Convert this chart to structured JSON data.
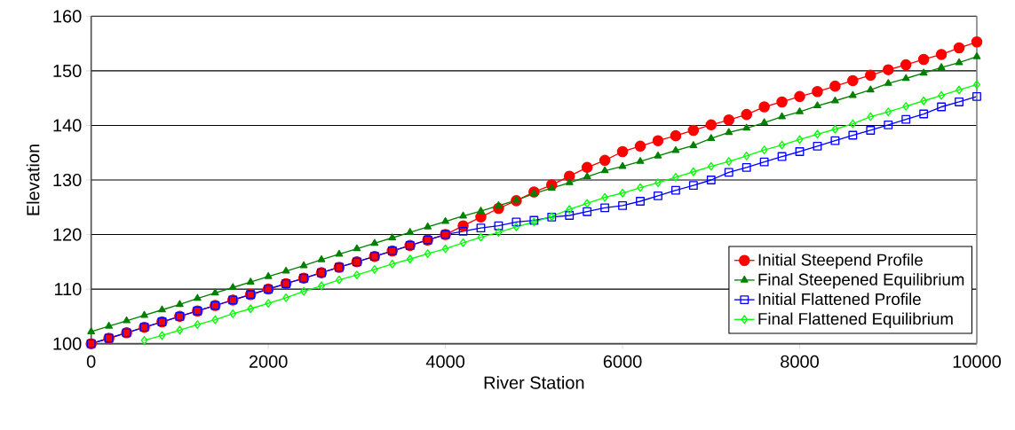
{
  "chart_data": {
    "type": "line",
    "xlabel": "River Station",
    "ylabel": "Elevation",
    "x": [
      0,
      200,
      400,
      600,
      800,
      1000,
      1200,
      1400,
      1600,
      1800,
      2000,
      2200,
      2400,
      2600,
      2800,
      3000,
      3200,
      3400,
      3600,
      3800,
      4000,
      4200,
      4400,
      4600,
      4800,
      5000,
      5200,
      5400,
      5600,
      5800,
      6000,
      6200,
      6400,
      6600,
      6800,
      7000,
      7200,
      7400,
      7600,
      7800,
      8000,
      8200,
      8400,
      8600,
      8800,
      9000,
      9200,
      9400,
      9600,
      9800,
      10000
    ],
    "series": [
      {
        "name": "Initial Steepend Profile",
        "color": "#ff0000",
        "marker": "circle",
        "values": [
          100,
          101,
          102,
          103,
          104,
          105,
          106,
          107,
          108,
          109,
          110,
          111,
          112,
          113,
          114,
          115,
          116,
          117,
          118,
          119,
          120,
          121.6,
          123.2,
          124.8,
          126.2,
          127.8,
          129.1,
          130.7,
          132.3,
          133.6,
          135.2,
          136.2,
          137.2,
          138.1,
          139.1,
          140.1,
          141.0,
          142.0,
          143.4,
          144.3,
          145.3,
          146.2,
          147.2,
          148.2,
          149.2,
          150.2,
          151.1,
          152.1,
          153.0,
          154.2,
          155.3
        ]
      },
      {
        "name": "Final Steepened Equilibrium",
        "color": "#008000",
        "marker": "triangle",
        "values": [
          102.2,
          103.2,
          104.2,
          105.2,
          106.2,
          107.2,
          108.3,
          109.3,
          110.3,
          111.3,
          112.3,
          113.3,
          114.3,
          115.4,
          116.4,
          117.4,
          118.4,
          119.4,
          120.4,
          121.4,
          122.4,
          123.4,
          124.3,
          125.3,
          126.3,
          127.5,
          128.5,
          129.5,
          130.6,
          131.7,
          132.5,
          133.4,
          134.4,
          135.4,
          136.3,
          137.6,
          138.7,
          139.5,
          140.5,
          141.6,
          142.5,
          143.6,
          144.5,
          145.5,
          146.5,
          147.7,
          148.6,
          149.6,
          150.6,
          151.5,
          152.6
        ]
      },
      {
        "name": "Initial Flattened Profile",
        "color": "#0000ff",
        "marker": "square",
        "values": [
          100,
          101,
          102,
          103,
          104,
          105,
          106,
          107,
          108,
          109,
          110,
          111,
          112,
          113,
          114,
          115,
          116,
          117,
          118,
          119,
          120,
          120.6,
          121.2,
          121.6,
          122.3,
          122.6,
          123.2,
          123.5,
          124.2,
          124.9,
          125.3,
          126.1,
          127.1,
          128.1,
          129.0,
          130.0,
          131.4,
          132.3,
          133.3,
          134.3,
          135.2,
          136.2,
          137.2,
          138.2,
          139.1,
          140.1,
          141.1,
          142.1,
          143.4,
          144.3,
          145.3
        ]
      },
      {
        "name": "Final Flattened Equilibrium",
        "color": "#00ff00",
        "marker": "diamond",
        "values": [
          null,
          null,
          null,
          100.6,
          101.5,
          102.5,
          103.5,
          104.4,
          105.5,
          106.4,
          107.4,
          108.4,
          109.6,
          110.6,
          111.7,
          112.6,
          113.6,
          114.6,
          115.5,
          116.5,
          117.4,
          118.5,
          119.5,
          120.4,
          121.4,
          122.3,
          123.3,
          124.6,
          125.7,
          126.8,
          127.6,
          128.6,
          129.5,
          130.5,
          131.5,
          132.5,
          133.4,
          134.4,
          135.5,
          136.4,
          137.4,
          138.4,
          139.3,
          140.3,
          141.6,
          142.5,
          143.5,
          144.5,
          145.5,
          146.5,
          147.5
        ]
      }
    ],
    "xlim": [
      0,
      10000
    ],
    "xticks": [
      0,
      2000,
      4000,
      6000,
      8000,
      10000
    ],
    "ylim": [
      100,
      160
    ],
    "yticks": [
      100,
      110,
      120,
      130,
      140,
      150,
      160
    ],
    "grid": "y",
    "legend": "bottom right",
    "line_style": "solid"
  }
}
